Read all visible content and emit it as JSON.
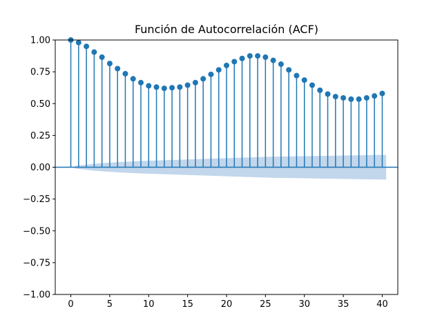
{
  "chart_data": {
    "type": "stem",
    "title": "Función de Autocorrelación (ACF)",
    "xlabel": "",
    "ylabel": "",
    "xlim": [
      -2,
      42
    ],
    "ylim": [
      -1.0,
      1.0
    ],
    "x_ticks": [
      0,
      5,
      10,
      15,
      20,
      25,
      30,
      35,
      40
    ],
    "x_tick_labels": [
      "0",
      "5",
      "10",
      "15",
      "20",
      "25",
      "30",
      "35",
      "40"
    ],
    "y_ticks": [
      1.0,
      0.75,
      0.5,
      0.25,
      0.0,
      -0.25,
      -0.5,
      -0.75,
      -1.0
    ],
    "y_tick_labels": [
      "1.00",
      "0.75",
      "0.50",
      "0.25",
      "0.00",
      "−0.25",
      "−0.50",
      "−0.75",
      "−1.00"
    ],
    "grid": false,
    "colors": {
      "stem": "#1f77b4",
      "confidence_band": "#aec8e6",
      "axes": "#000000"
    },
    "lags": [
      0,
      1,
      2,
      3,
      4,
      5,
      6,
      7,
      8,
      9,
      10,
      11,
      12,
      13,
      14,
      15,
      16,
      17,
      18,
      19,
      20,
      21,
      22,
      23,
      24,
      25,
      26,
      27,
      28,
      29,
      30,
      31,
      32,
      33,
      34,
      35,
      36,
      37,
      38,
      39,
      40
    ],
    "acf": [
      1.0,
      0.98,
      0.95,
      0.905,
      0.865,
      0.815,
      0.775,
      0.735,
      0.695,
      0.665,
      0.64,
      0.63,
      0.62,
      0.625,
      0.63,
      0.645,
      0.665,
      0.695,
      0.73,
      0.765,
      0.8,
      0.83,
      0.855,
      0.875,
      0.875,
      0.865,
      0.84,
      0.81,
      0.765,
      0.72,
      0.685,
      0.645,
      0.605,
      0.575,
      0.555,
      0.545,
      0.535,
      0.535,
      0.545,
      0.56,
      0.58
    ],
    "confidence_interval_upper": [
      0,
      0.01,
      0.02,
      0.027,
      0.032,
      0.036,
      0.04,
      0.043,
      0.046,
      0.049,
      0.051,
      0.053,
      0.055,
      0.057,
      0.059,
      0.061,
      0.063,
      0.065,
      0.067,
      0.069,
      0.071,
      0.073,
      0.075,
      0.077,
      0.079,
      0.081,
      0.083,
      0.084,
      0.085,
      0.086,
      0.087,
      0.088,
      0.089,
      0.09,
      0.091,
      0.092,
      0.093,
      0.094,
      0.095,
      0.096,
      0.097
    ]
  }
}
